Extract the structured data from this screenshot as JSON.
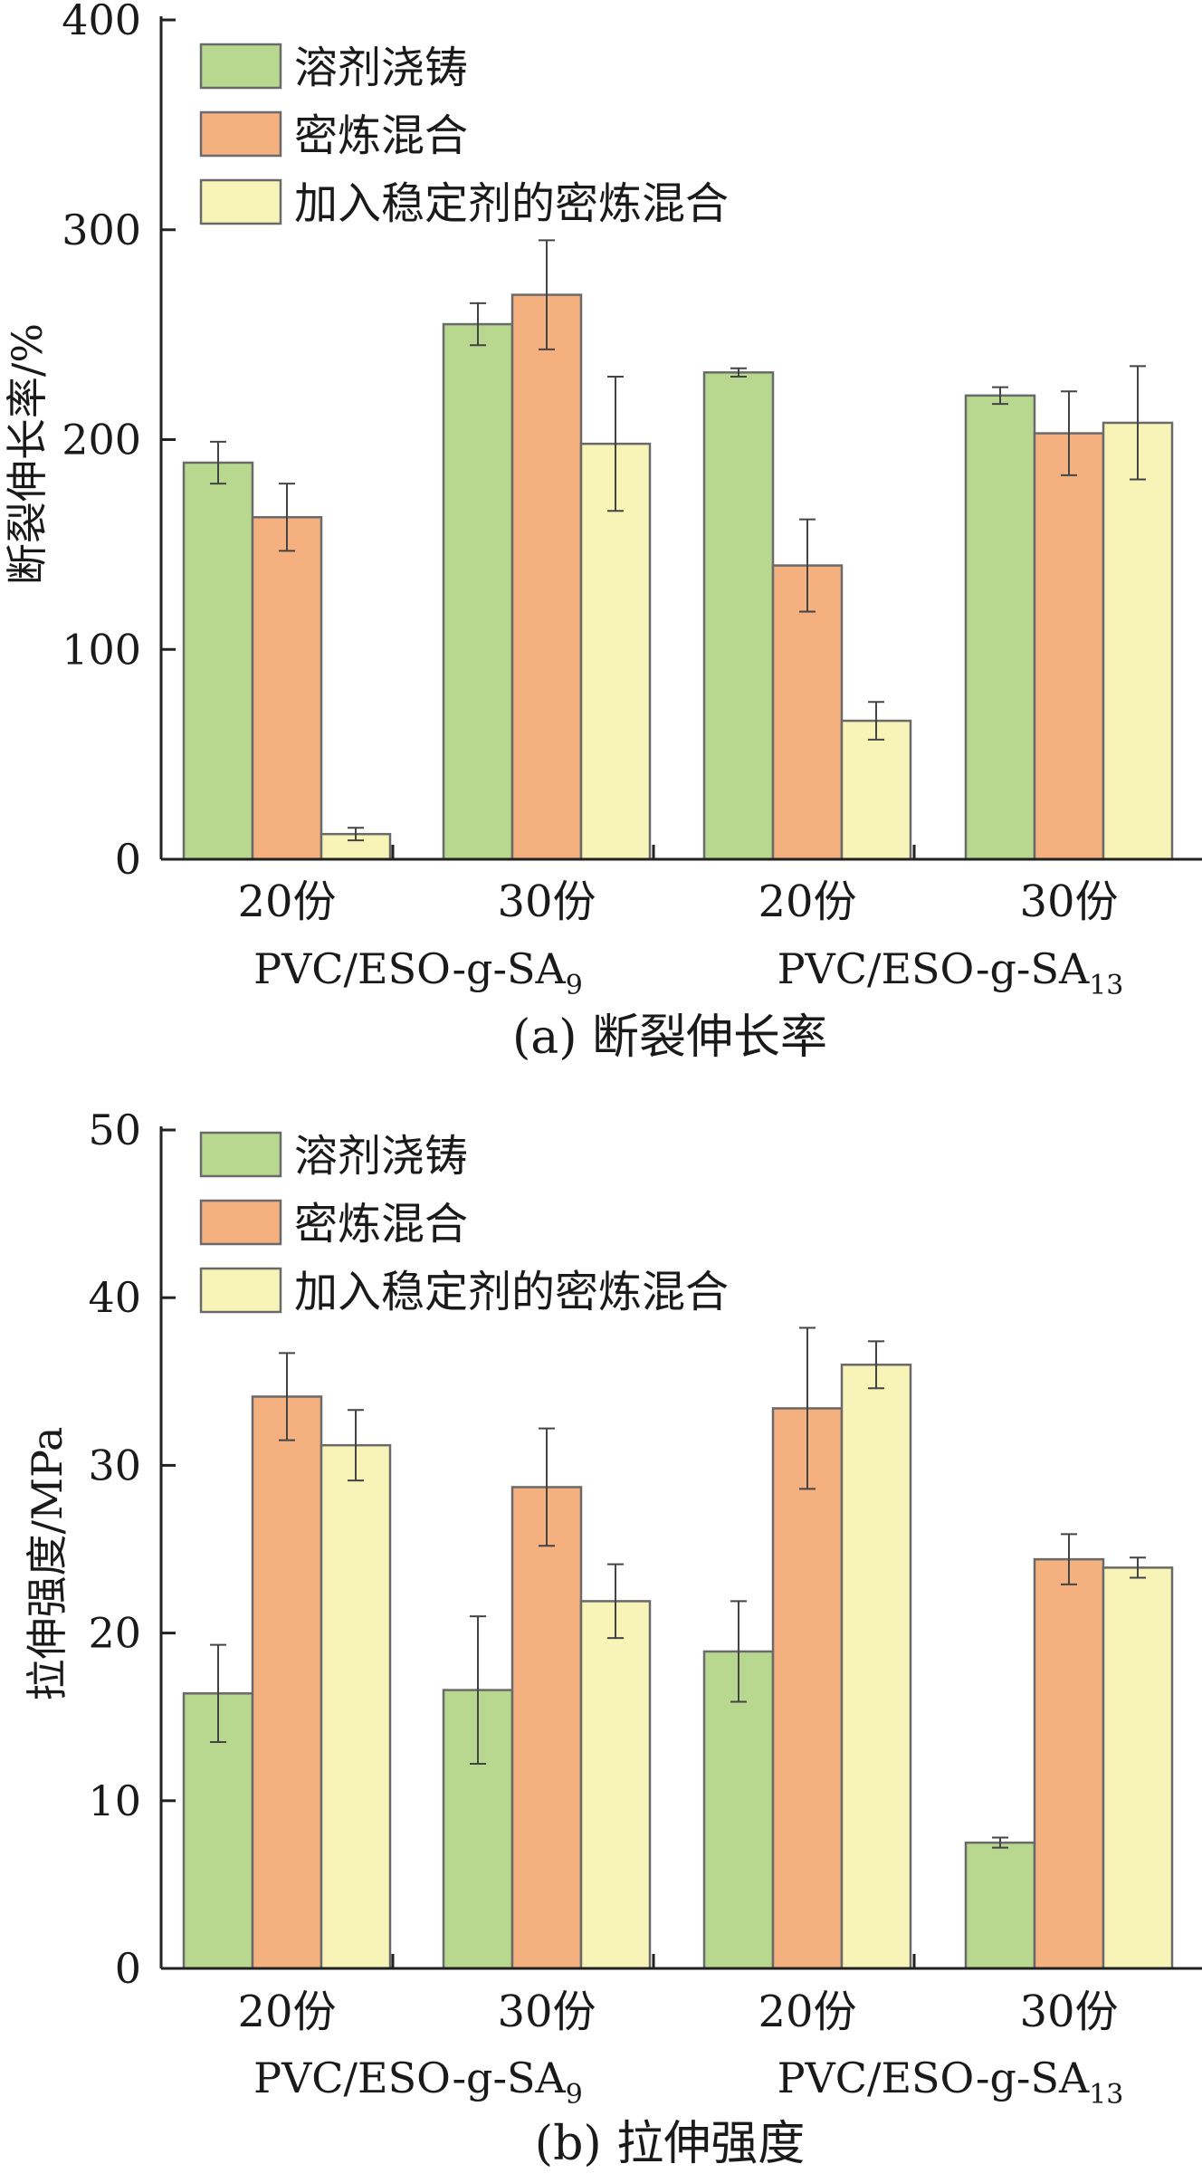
{
  "chart_data": [
    {
      "type": "bar",
      "caption": "(a) 断裂伸长率",
      "ylabel": "断裂伸长率/%",
      "ylim": [
        0,
        400
      ],
      "yticks": [
        0,
        100,
        200,
        300,
        400
      ],
      "categories": [
        "20份",
        "30份",
        "20份",
        "30份"
      ],
      "groups": [
        {
          "label": "PVC/ESO-g-SA",
          "sub": "9"
        },
        {
          "label": "PVC/ESO-g-SA",
          "sub": "13"
        }
      ],
      "series": [
        {
          "name": "溶剂浇铸",
          "color": "#b8d88f",
          "values": [
            189,
            255,
            232,
            221
          ],
          "errors": [
            10,
            10,
            2,
            4
          ]
        },
        {
          "name": "密炼混合",
          "color": "#f5b07f",
          "values": [
            163,
            269,
            140,
            203
          ],
          "errors": [
            16,
            26,
            22,
            20
          ]
        },
        {
          "name": "加入稳定剂的密炼混合",
          "color": "#f8f3b7",
          "values": [
            12,
            198,
            66,
            208
          ],
          "errors": [
            3,
            32,
            9,
            27
          ]
        }
      ],
      "legend": "top-left"
    },
    {
      "type": "bar",
      "caption": "(b) 拉伸强度",
      "ylabel": "拉伸强度/MPa",
      "ylim": [
        0,
        50
      ],
      "yticks": [
        0,
        10,
        20,
        30,
        40,
        50
      ],
      "categories": [
        "20份",
        "30份",
        "20份",
        "30份"
      ],
      "groups": [
        {
          "label": "PVC/ESO-g-SA",
          "sub": "9"
        },
        {
          "label": "PVC/ESO-g-SA",
          "sub": "13"
        }
      ],
      "series": [
        {
          "name": "溶剂浇铸",
          "color": "#b8d88f",
          "values": [
            16.4,
            16.6,
            18.9,
            7.5
          ],
          "errors": [
            2.9,
            4.4,
            3.0,
            0.3
          ]
        },
        {
          "name": "密炼混合",
          "color": "#f5b07f",
          "values": [
            34.1,
            28.7,
            33.4,
            24.4
          ],
          "errors": [
            2.6,
            3.5,
            4.8,
            1.5
          ]
        },
        {
          "name": "加入稳定剂的密炼混合",
          "color": "#f8f3b7",
          "values": [
            31.2,
            21.9,
            36.0,
            23.9
          ],
          "errors": [
            2.1,
            2.2,
            1.4,
            0.6
          ]
        }
      ],
      "legend": "top-left"
    }
  ]
}
